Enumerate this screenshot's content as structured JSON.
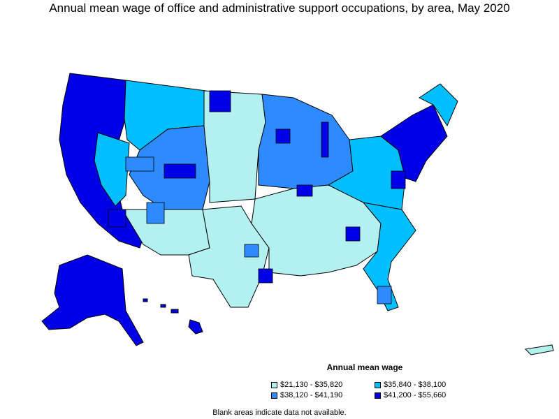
{
  "title": "Annual mean wage of office and administrative support occupations, by area, May 2020",
  "legend": {
    "title": "Annual mean wage",
    "items": [
      {
        "label": "$21,130 - $35,820",
        "color": "#b3f0f0"
      },
      {
        "label": "$35,840 - $38,100",
        "color": "#00bfff"
      },
      {
        "label": "$38,120 - $41,190",
        "color": "#2e8bff"
      },
      {
        "label": "$41,200 - $55,660",
        "color": "#0000e6"
      }
    ]
  },
  "note": "Blank areas indicate data not available.",
  "colors": {
    "low": "#b3f0f0",
    "mid_low": "#00bfff",
    "mid_high": "#2e8bff",
    "high": "#0000e6",
    "border": "#000000"
  }
}
